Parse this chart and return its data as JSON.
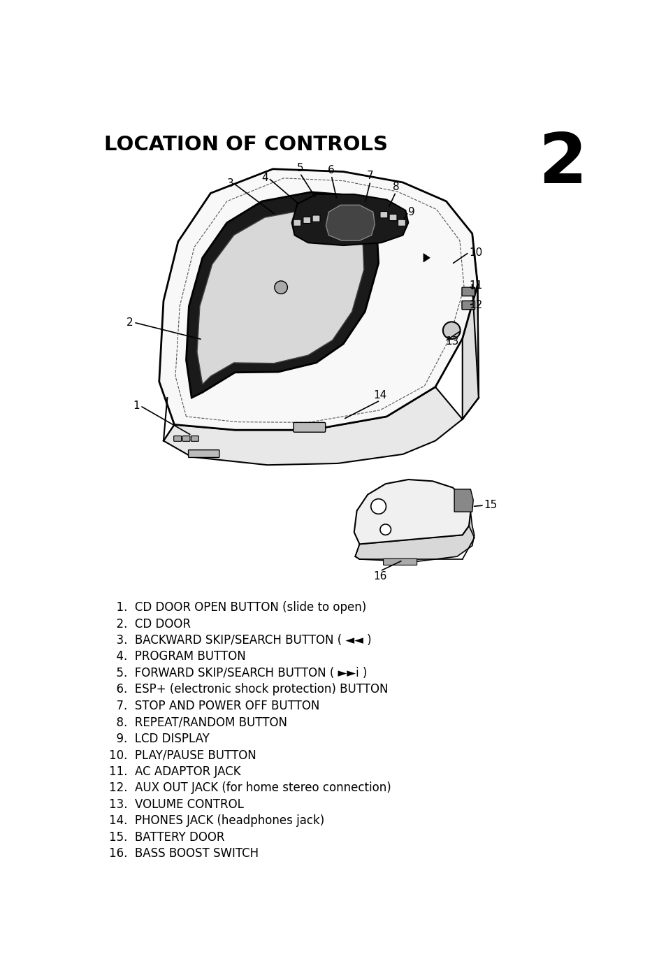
{
  "title": "LOCATION OF CONTROLS",
  "page_number": "2",
  "title_fontsize": 21,
  "page_num_fontsize": 72,
  "bg_color": "#ffffff",
  "text_color": "#000000",
  "items": [
    "  1.  CD DOOR OPEN BUTTON (slide to open)",
    "  2.  CD DOOR",
    "  3.  BACKWARD SKIP/SEARCH BUTTON ( ◄◄ )",
    "  4.  PROGRAM BUTTON",
    "  5.  FORWARD SKIP/SEARCH BUTTON ( ►►i )",
    "  6.  ESP+ (electronic shock protection) BUTTON",
    "  7.  STOP AND POWER OFF BUTTON",
    "  8.  REPEAT/RANDOM BUTTON",
    "  9.  LCD DISPLAY",
    "10.  PLAY/PAUSE BUTTON",
    "11.  AC ADAPTOR JACK",
    "12.  AUX OUT JACK (for home stereo connection)",
    "13.  VOLUME CONTROL",
    "14.  PHONES JACK (headphones jack)",
    "15.  BATTERY DOOR",
    "16.  BASS BOOST SWITCH"
  ],
  "label_fontsize": 12,
  "number_fontsize": 11
}
